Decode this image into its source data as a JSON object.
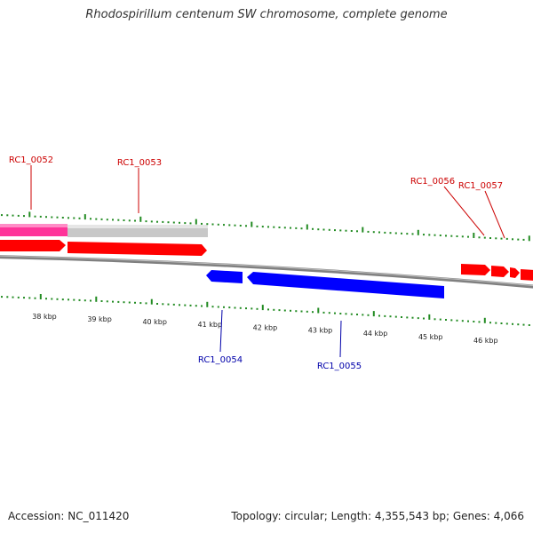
{
  "title": "Rhodospirillum centenum SW chromosome, complete genome",
  "footer": {
    "accession": "Accession: NC_011420",
    "summary": "Topology: circular; Length: 4,355,543 bp; Genes: 4,066"
  },
  "colors": {
    "forward_gene": "#ff0000",
    "reverse_gene": "#0000ff",
    "forward_label": "#cc0000",
    "reverse_label": "#0000aa",
    "tick": "#228b22",
    "backbone": "#888888",
    "pink_region": "#ff3399",
    "gray_region": "#c8c8c8"
  },
  "axis": {
    "labels": [
      "38 kbp",
      "39 kbp",
      "40 kbp",
      "41 kbp",
      "42 kbp",
      "43 kbp",
      "44 kbp",
      "45 kbp",
      "46 kbp"
    ]
  },
  "forward_genes": [
    "RC1_0052",
    "RC1_0053",
    "RC1_0056",
    "RC1_0057"
  ],
  "reverse_genes": [
    "RC1_0054",
    "RC1_0055"
  ]
}
